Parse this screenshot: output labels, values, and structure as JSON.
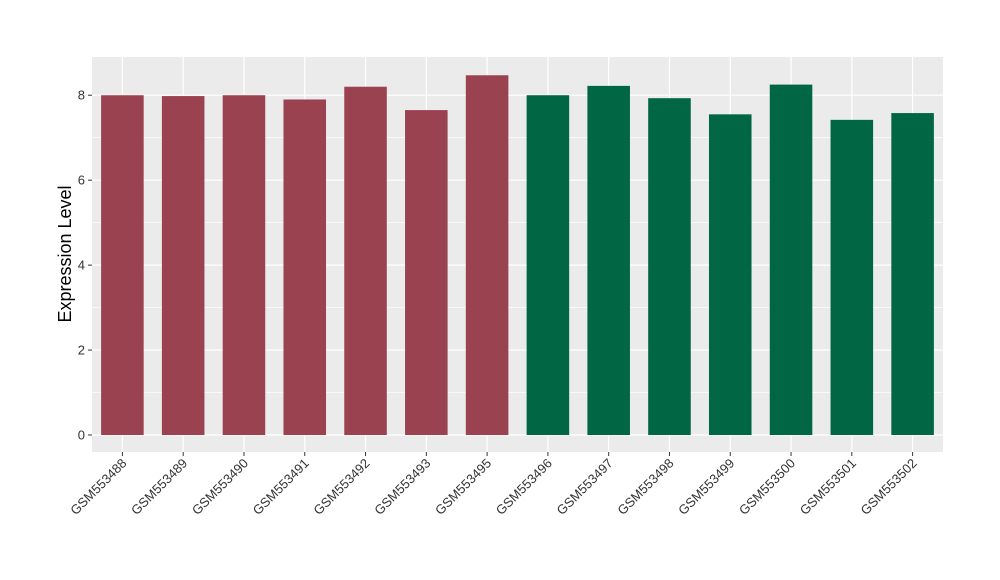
{
  "chart_data": {
    "type": "bar",
    "title": "",
    "xlabel": "",
    "ylabel": "Expression Level",
    "categories": [
      "GSM553488",
      "GSM553489",
      "GSM553490",
      "GSM553491",
      "GSM553492",
      "GSM553493",
      "GSM553495",
      "GSM553496",
      "GSM553497",
      "GSM553498",
      "GSM553499",
      "GSM553500",
      "GSM553501",
      "GSM553502"
    ],
    "values": [
      8.0,
      7.98,
      8.0,
      7.9,
      8.2,
      7.65,
      8.47,
      8.0,
      8.22,
      7.93,
      7.55,
      8.25,
      7.42,
      7.58
    ],
    "groups": [
      0,
      0,
      0,
      0,
      0,
      0,
      0,
      1,
      1,
      1,
      1,
      1,
      1,
      1
    ],
    "group_colors": [
      "#9b4250",
      "#006644"
    ],
    "ylim": [
      -0.4,
      8.9
    ],
    "yticks": [
      0,
      2,
      4,
      6,
      8
    ],
    "grid": true,
    "panel_background": "#ebebeb",
    "legend": "none"
  }
}
